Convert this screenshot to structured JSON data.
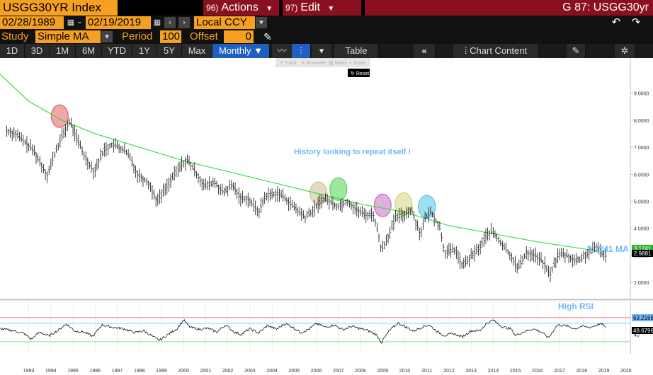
{
  "header": {
    "ticker": "USGG30YR Index",
    "actions_num": "96)",
    "actions_label": "Actions",
    "edit_num": "97)",
    "edit_label": "Edit",
    "screen_label": "G 87: USGG30yr"
  },
  "controls": {
    "start_date": "02/28/1989",
    "date_sep": "-",
    "end_date": "02/19/2019",
    "currency": "Local CCY",
    "study_label": "Study",
    "study_value": "Simple MA",
    "period_label": "Period",
    "period_value": "100",
    "offset_label": "Offset",
    "offset_value": "0"
  },
  "toolbar": {
    "ranges": [
      "1D",
      "3D",
      "1M",
      "6M",
      "YTD",
      "1Y",
      "5Y",
      "Max"
    ],
    "frequency": "Monthly",
    "table_label": "Table",
    "chart_content_label": "Chart Content"
  },
  "tools_menu": {
    "items": [
      "Track",
      "Annotate",
      "News",
      "Zoom"
    ],
    "reset_label": "Reset"
  },
  "colors": {
    "ma_line": "#3fdf3f",
    "annotation": "#6fb8ff",
    "rsi_high": "#e04040",
    "rsi_mid": "#6fb8ff",
    "rsi_low": "#3fdf3f"
  },
  "chart_data": {
    "type": "line",
    "x_years": [
      "1993",
      "1994",
      "1995",
      "1996",
      "1997",
      "1998",
      "1999",
      "2000",
      "2001",
      "2002",
      "2003",
      "2004",
      "2005",
      "2006",
      "2007",
      "2008",
      "2009",
      "2010",
      "2011",
      "2012",
      "2013",
      "2014",
      "2015",
      "2016",
      "2017",
      "2018",
      "2019",
      "2020"
    ],
    "y_ticks": [
      "9.0000",
      "8.0000",
      "7.0000",
      "6.0000",
      "5.0000",
      "4.0000",
      "3.0000",
      "2.0000"
    ],
    "ylim": [
      1.4,
      10.3
    ],
    "series": [
      {
        "type": "ohlc",
        "points": [
          [
            1992.0,
            7.6
          ],
          [
            1992.4,
            7.5
          ],
          [
            1992.8,
            7.2
          ],
          [
            1993.2,
            6.9
          ],
          [
            1993.6,
            6.3
          ],
          [
            1993.85,
            5.95
          ],
          [
            1994.1,
            6.6
          ],
          [
            1994.5,
            7.4
          ],
          [
            1994.85,
            7.95
          ],
          [
            1995.1,
            7.5
          ],
          [
            1995.5,
            6.7
          ],
          [
            1995.95,
            6.1
          ],
          [
            1996.4,
            6.9
          ],
          [
            1996.8,
            7.1
          ],
          [
            1997.3,
            6.9
          ],
          [
            1997.6,
            6.6
          ],
          [
            1997.9,
            6.0
          ],
          [
            1998.4,
            5.7
          ],
          [
            1998.8,
            5.0
          ],
          [
            1999.2,
            5.5
          ],
          [
            1999.6,
            6.0
          ],
          [
            1999.95,
            6.4
          ],
          [
            2000.2,
            6.5
          ],
          [
            2000.6,
            6.0
          ],
          [
            2000.95,
            5.55
          ],
          [
            2001.4,
            5.7
          ],
          [
            2001.8,
            5.3
          ],
          [
            2002.2,
            5.6
          ],
          [
            2002.6,
            5.1
          ],
          [
            2002.9,
            5.1
          ],
          [
            2003.4,
            4.6
          ],
          [
            2003.7,
            5.2
          ],
          [
            2004.3,
            5.3
          ],
          [
            2004.6,
            5.1
          ],
          [
            2004.9,
            4.85
          ],
          [
            2005.5,
            4.4
          ],
          [
            2005.9,
            4.7
          ],
          [
            2006.3,
            5.1
          ],
          [
            2006.6,
            5.0
          ],
          [
            2006.95,
            4.8
          ],
          [
            2007.4,
            5.0
          ],
          [
            2007.8,
            4.7
          ],
          [
            2008.2,
            4.5
          ],
          [
            2008.6,
            4.5
          ],
          [
            2008.95,
            3.2
          ],
          [
            2009.3,
            3.8
          ],
          [
            2009.6,
            4.4
          ],
          [
            2009.95,
            4.5
          ],
          [
            2010.3,
            4.7
          ],
          [
            2010.7,
            3.8
          ],
          [
            2010.95,
            4.4
          ],
          [
            2011.2,
            4.6
          ],
          [
            2011.6,
            4.0
          ],
          [
            2011.8,
            3.1
          ],
          [
            2012.3,
            3.2
          ],
          [
            2012.6,
            2.6
          ],
          [
            2012.95,
            2.9
          ],
          [
            2013.4,
            3.3
          ],
          [
            2013.7,
            3.75
          ],
          [
            2013.95,
            3.9
          ],
          [
            2014.3,
            3.5
          ],
          [
            2014.7,
            3.1
          ],
          [
            2014.95,
            2.8
          ],
          [
            2015.1,
            2.5
          ],
          [
            2015.5,
            3.1
          ],
          [
            2015.9,
            3.0
          ],
          [
            2016.3,
            2.7
          ],
          [
            2016.55,
            2.25
          ],
          [
            2016.95,
            3.05
          ],
          [
            2017.3,
            3.0
          ],
          [
            2017.7,
            2.8
          ],
          [
            2017.95,
            2.85
          ],
          [
            2018.3,
            3.1
          ],
          [
            2018.8,
            3.3
          ],
          [
            2018.95,
            3.0
          ],
          [
            2019.1,
            3.0
          ]
        ]
      },
      {
        "name": "3.1241 MA",
        "type": "moving-average",
        "points": [
          [
            1991.7,
            9.7
          ],
          [
            1993.0,
            8.7
          ],
          [
            1994.5,
            8.0
          ],
          [
            1996.0,
            7.5
          ],
          [
            1998.0,
            7.0
          ],
          [
            2000.0,
            6.5
          ],
          [
            2002.0,
            6.1
          ],
          [
            2004.0,
            5.7
          ],
          [
            2006.0,
            5.3
          ],
          [
            2008.0,
            4.9
          ],
          [
            2010.0,
            4.6
          ],
          [
            2012.0,
            4.1
          ],
          [
            2014.0,
            3.8
          ],
          [
            2016.0,
            3.5
          ],
          [
            2018.0,
            3.25
          ],
          [
            2019.1,
            3.12
          ]
        ]
      }
    ],
    "price_labels": {
      "ma": "3.1241",
      "last": "2.9881"
    },
    "annotation": "History looking to repeat itself !",
    "ma_label": "3.1241 MA",
    "circles": [
      {
        "x": 1994.4,
        "y": 8.15,
        "color": "#e05050"
      },
      {
        "x": 2006.1,
        "y": 5.3,
        "color": "#c8b890"
      },
      {
        "x": 2007.0,
        "y": 5.45,
        "color": "#40d040"
      },
      {
        "x": 2009.0,
        "y": 4.85,
        "color": "#c060c0"
      },
      {
        "x": 2009.95,
        "y": 4.9,
        "color": "#d0d070"
      },
      {
        "x": 2011.0,
        "y": 4.8,
        "color": "#40c0e0"
      }
    ],
    "rsi": {
      "label": "High RSI",
      "ticks": [
        "40"
      ],
      "value_labels": [
        "63.2168",
        "49.6796"
      ],
      "ylim": [
        0,
        100
      ],
      "levels": {
        "high": 75,
        "mid": 63.2,
        "low": 25
      },
      "points": [
        [
          1991.7,
          52
        ],
        [
          1992.3,
          48
        ],
        [
          1992.8,
          42
        ],
        [
          1993.1,
          30
        ],
        [
          1993.5,
          45
        ],
        [
          1993.9,
          37
        ],
        [
          1994.3,
          48
        ],
        [
          1994.7,
          62
        ],
        [
          1995.1,
          47
        ],
        [
          1995.5,
          45
        ],
        [
          1995.9,
          36
        ],
        [
          1996.3,
          60
        ],
        [
          1996.8,
          55
        ],
        [
          1997.3,
          52
        ],
        [
          1997.8,
          44
        ],
        [
          1998.2,
          48
        ],
        [
          1998.6,
          36
        ],
        [
          1998.9,
          28
        ],
        [
          1999.3,
          40
        ],
        [
          1999.7,
          52
        ],
        [
          2000.0,
          70
        ],
        [
          2000.3,
          55
        ],
        [
          2000.7,
          51
        ],
        [
          2001.1,
          53
        ],
        [
          2001.5,
          45
        ],
        [
          2001.9,
          60
        ],
        [
          2002.3,
          45
        ],
        [
          2002.6,
          40
        ],
        [
          2003.0,
          52
        ],
        [
          2003.4,
          43
        ],
        [
          2003.8,
          59
        ],
        [
          2004.2,
          51
        ],
        [
          2004.6,
          63
        ],
        [
          2004.9,
          56
        ],
        [
          2005.3,
          44
        ],
        [
          2005.7,
          52
        ],
        [
          2006.0,
          63
        ],
        [
          2006.4,
          55
        ],
        [
          2006.8,
          60
        ],
        [
          2007.2,
          50
        ],
        [
          2007.6,
          57
        ],
        [
          2008.0,
          52
        ],
        [
          2008.3,
          49
        ],
        [
          2008.7,
          40
        ],
        [
          2008.95,
          24
        ],
        [
          2009.3,
          48
        ],
        [
          2009.7,
          64
        ],
        [
          2010.0,
          57
        ],
        [
          2010.4,
          47
        ],
        [
          2010.8,
          56
        ],
        [
          2011.1,
          60
        ],
        [
          2011.5,
          45
        ],
        [
          2011.8,
          38
        ],
        [
          2012.2,
          42
        ],
        [
          2012.6,
          35
        ],
        [
          2013.0,
          48
        ],
        [
          2013.4,
          48
        ],
        [
          2013.7,
          63
        ],
        [
          2014.0,
          70
        ],
        [
          2014.4,
          56
        ],
        [
          2014.8,
          52
        ],
        [
          2015.0,
          38
        ],
        [
          2015.4,
          46
        ],
        [
          2015.8,
          52
        ],
        [
          2016.2,
          45
        ],
        [
          2016.5,
          33
        ],
        [
          2016.9,
          60
        ],
        [
          2017.3,
          58
        ],
        [
          2017.7,
          52
        ],
        [
          2018.0,
          57
        ],
        [
          2018.4,
          55
        ],
        [
          2018.8,
          62
        ],
        [
          2019.0,
          60
        ],
        [
          2019.1,
          50
        ]
      ]
    }
  }
}
